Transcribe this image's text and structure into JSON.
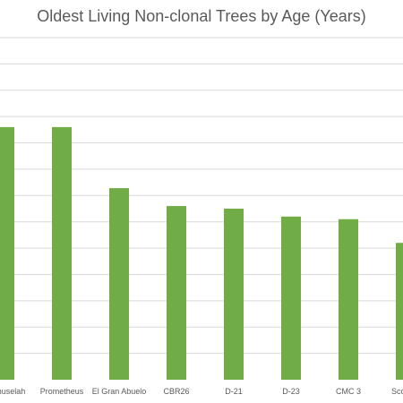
{
  "chart_data": {
    "type": "bar",
    "title": "Oldest Living Non-clonal Trees by Age (Years)",
    "xlabel": "",
    "ylabel": "",
    "categories": [
      "Methuselah",
      "Prometheus",
      "El Gran Abuelo",
      "CBR26",
      "D-21",
      "D-23",
      "CMC 3",
      "Scofield"
    ],
    "values": [
      4800,
      4800,
      3640,
      3300,
      3250,
      3100,
      3050,
      2600
    ],
    "ylim": [
      0,
      6500
    ],
    "grid": true,
    "legend": "none",
    "colors": {
      "bar": "#70ad47",
      "grid": "#d9d9d9",
      "text": "#595959"
    }
  }
}
